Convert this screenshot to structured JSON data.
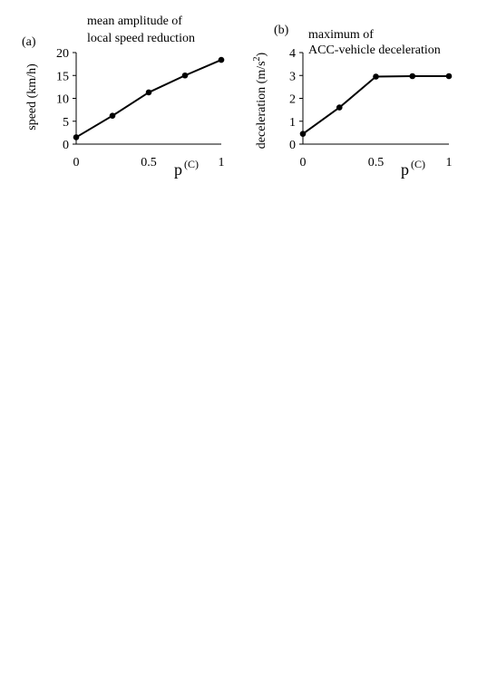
{
  "chart_data": [
    {
      "type": "line",
      "panel_label": "(a)",
      "title_lines": [
        "mean amplitude of",
        "local speed reduction"
      ],
      "ylabel": "speed (km/h)",
      "xlabel": "p",
      "xlabel_sup": "(C)",
      "xlim": [
        0,
        1
      ],
      "ylim": [
        0,
        20
      ],
      "xticks": [
        0,
        0.5,
        1
      ],
      "xtick_labels": [
        "0",
        "0.5",
        "1"
      ],
      "yticks": [
        0,
        5,
        10,
        15,
        20
      ],
      "ytick_labels": [
        "0",
        "5",
        "10",
        "15",
        "20"
      ],
      "x": [
        0,
        0.25,
        0.5,
        0.75,
        1
      ],
      "y": [
        1.5,
        6.2,
        11.3,
        15.0,
        18.4
      ],
      "grid": false
    },
    {
      "type": "line",
      "panel_label": "(b)",
      "title_lines": [
        "maximum of",
        "ACC-vehicle deceleration"
      ],
      "ylabel": "deceleration (m/s",
      "ylabel_sup": "2",
      "ylabel_end": ")",
      "xlabel": "p",
      "xlabel_sup": "(C)",
      "xlim": [
        0,
        1
      ],
      "ylim": [
        0,
        4
      ],
      "xticks": [
        0,
        0.5,
        1
      ],
      "xtick_labels": [
        "0",
        "0.5",
        "1"
      ],
      "yticks": [
        0,
        1,
        2,
        3,
        4
      ],
      "ytick_labels": [
        "0",
        "1",
        "2",
        "3",
        "4"
      ],
      "x": [
        0,
        0.25,
        0.5,
        0.75,
        1
      ],
      "y": [
        0.45,
        1.6,
        2.95,
        2.97,
        2.97
      ],
      "grid": false
    }
  ]
}
